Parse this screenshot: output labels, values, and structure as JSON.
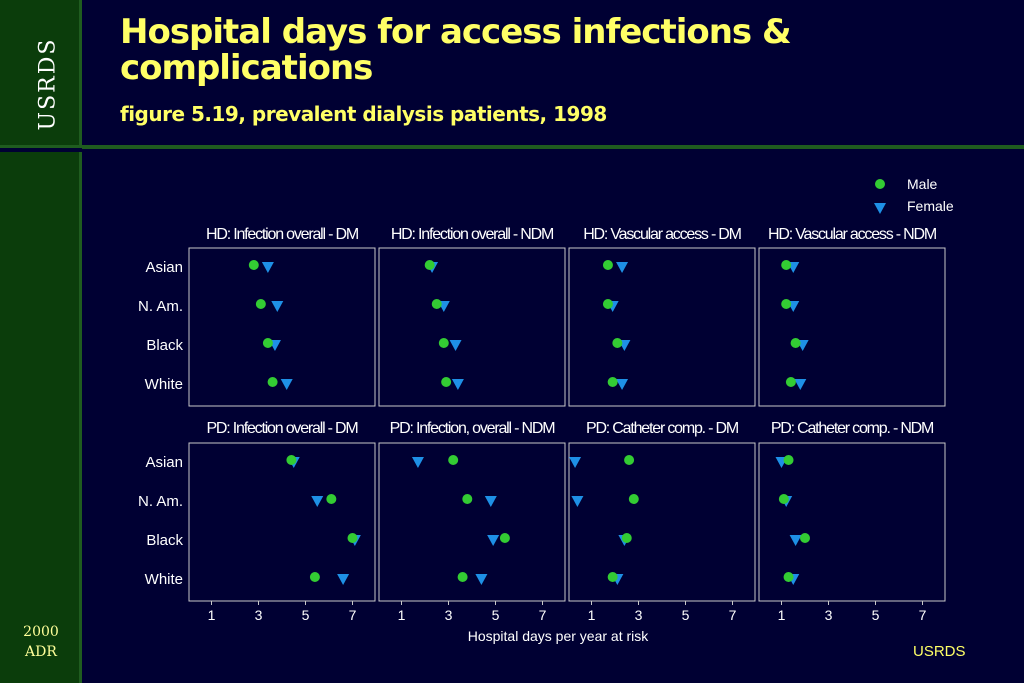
{
  "sidebar": {
    "brand": "USRDS",
    "edition_line1": "2000",
    "edition_line2": "ADR"
  },
  "header": {
    "title": "Hospital days for access infections & complications",
    "subtitle": "figure 5.19, prevalent dialysis patients, 1998"
  },
  "footer": {
    "brand": "USRDS"
  },
  "colors": {
    "male": "#33cc33",
    "female": "#1e90e6",
    "background": "#000033",
    "title": "#ffff66"
  },
  "chart_data": {
    "type": "scatter",
    "xlabel": "Hospital days per year at risk",
    "xlim": [
      0,
      8
    ],
    "xticks": [
      1,
      3,
      5,
      7
    ],
    "categories": [
      "Asian",
      "N. Am.",
      "Black",
      "White"
    ],
    "legend": {
      "position": "top-right",
      "entries": [
        {
          "name": "Male",
          "marker": "circle"
        },
        {
          "name": "Female",
          "marker": "triangle-down"
        }
      ]
    },
    "panels": [
      {
        "title": "HD: Infection overall - DM",
        "male": [
          2.8,
          3.1,
          3.4,
          3.6
        ],
        "female": [
          3.4,
          3.8,
          3.7,
          4.2
        ]
      },
      {
        "title": "HD: Infection overall - NDM",
        "male": [
          2.2,
          2.5,
          2.8,
          2.9
        ],
        "female": [
          2.3,
          2.8,
          3.3,
          3.4
        ]
      },
      {
        "title": "HD: Vascular access - DM",
        "male": [
          1.7,
          1.7,
          2.1,
          1.9
        ],
        "female": [
          2.3,
          1.9,
          2.4,
          2.3
        ]
      },
      {
        "title": "HD: Vascular access - NDM",
        "male": [
          1.2,
          1.2,
          1.6,
          1.4
        ],
        "female": [
          1.5,
          1.5,
          1.9,
          1.8
        ]
      },
      {
        "title": "PD: Infection overall - DM",
        "male": [
          4.4,
          6.1,
          7.0,
          5.4
        ],
        "female": [
          4.5,
          5.5,
          7.1,
          6.6
        ]
      },
      {
        "title": "PD: Infection, overall - NDM",
        "male": [
          3.2,
          3.8,
          5.4,
          3.6
        ],
        "female": [
          1.7,
          4.8,
          4.9,
          4.4
        ]
      },
      {
        "title": "PD: Catheter comp. - DM",
        "male": [
          2.6,
          2.8,
          2.5,
          1.9
        ],
        "female": [
          0.3,
          0.4,
          2.4,
          2.1
        ]
      },
      {
        "title": "PD: Catheter comp. - NDM",
        "male": [
          1.3,
          1.1,
          2.0,
          1.3
        ],
        "female": [
          1.0,
          1.2,
          1.6,
          1.5
        ]
      }
    ]
  }
}
